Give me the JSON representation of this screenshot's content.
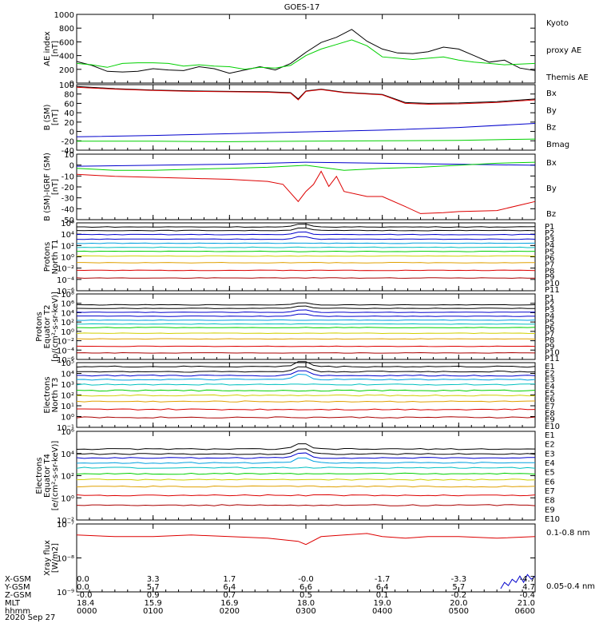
{
  "title": "GOES-17",
  "date": "2020 Sep 27",
  "x_ticks": [
    "0000",
    "0100",
    "0200",
    "0300",
    "0400",
    "0500",
    "0600"
  ],
  "ephemeris": {
    "rows": [
      {
        "label": "X-GSM",
        "values": [
          "0.0",
          "3.3",
          "1.7",
          "-0.0",
          "-1.7",
          "-3.3",
          "-4.7"
        ]
      },
      {
        "label": "Y-GSM",
        "values": [
          "0.0",
          "5.7",
          "6.4",
          "6.6",
          "6.4",
          "5.7",
          "4.7"
        ]
      },
      {
        "label": "Z-GSM",
        "values": [
          "-0.0",
          "0.9",
          "0.7",
          "0.5",
          "0.1",
          "-0.2",
          "-0.4"
        ]
      },
      {
        "label": "MLT",
        "values": [
          "18.4",
          "15.9",
          "16.9",
          "18.0",
          "19.0",
          "20.0",
          "21.0"
        ]
      },
      {
        "label": "hhmm",
        "values": [
          "0000",
          "0100",
          "0200",
          "0300",
          "0400",
          "0500",
          "0600"
        ]
      }
    ]
  },
  "colors": {
    "black": "#000000",
    "green": "#00d000",
    "blue": "#0000cc",
    "red": "#dd0000"
  },
  "chart_data": [
    {
      "type": "line",
      "panel": "ae",
      "ylabel": [
        "AE index",
        "[nT]"
      ],
      "yticks": [
        "0",
        "200",
        "400",
        "600",
        "800",
        "1000"
      ],
      "ylim": [
        0,
        1050
      ],
      "legend": [
        {
          "text": "Kyoto",
          "color": "#00d000"
        },
        {
          "text": "proxy AE",
          "color": "#00d000"
        },
        {
          "text": "Themis AE",
          "color": "#000000"
        }
      ],
      "series": [
        {
          "name": "Themis AE",
          "color": "#000000",
          "x": [
            0,
            0.2,
            0.4,
            0.6,
            0.8,
            1.0,
            1.2,
            1.4,
            1.6,
            1.8,
            2.0,
            2.2,
            2.4,
            2.6,
            2.8,
            3.0,
            3.2,
            3.4,
            3.6,
            3.8,
            4.0,
            4.2,
            4.4,
            4.6,
            4.8,
            5.0,
            5.2,
            5.4,
            5.6,
            5.8,
            6.0
          ],
          "y": [
            330,
            270,
            180,
            170,
            180,
            220,
            200,
            190,
            250,
            220,
            150,
            200,
            250,
            200,
            300,
            470,
            620,
            700,
            820,
            640,
            520,
            460,
            450,
            480,
            550,
            520,
            420,
            320,
            350,
            230,
            190
          ]
        },
        {
          "name": "Kyoto proxy AE",
          "color": "#00d000",
          "x": [
            0,
            0.2,
            0.4,
            0.6,
            0.8,
            1.0,
            1.2,
            1.4,
            1.6,
            1.8,
            2.0,
            2.2,
            2.4,
            2.6,
            2.8,
            3.0,
            3.2,
            3.4,
            3.6,
            3.8,
            4.0,
            4.2,
            4.4,
            4.6,
            4.8,
            5.0,
            5.2,
            5.4,
            5.6,
            5.8,
            6.0
          ],
          "y": [
            300,
            280,
            240,
            300,
            310,
            310,
            300,
            260,
            280,
            260,
            250,
            210,
            240,
            230,
            270,
            420,
            520,
            590,
            660,
            570,
            400,
            380,
            360,
            380,
            400,
            350,
            320,
            300,
            280,
            290,
            300
          ]
        }
      ]
    },
    {
      "type": "line",
      "panel": "b",
      "ylabel": [
        "B (SM)",
        "[nT]"
      ],
      "yticks": [
        "-40",
        "-20",
        "0",
        "20",
        "40",
        "60",
        "80",
        "100"
      ],
      "ylim": [
        -45,
        102
      ],
      "legend": [
        {
          "text": "Bx",
          "color": "#0000cc"
        },
        {
          "text": "By",
          "color": "#00d000"
        },
        {
          "text": "Bz",
          "color": "#dd0000"
        },
        {
          "text": "Bmag",
          "color": "#000000"
        }
      ],
      "series": [
        {
          "name": "Bmag",
          "color": "#000000",
          "x": [
            0,
            0.5,
            1,
            1.5,
            2,
            2.5,
            2.8,
            2.9,
            3.0,
            3.2,
            3.5,
            4.0,
            4.3,
            4.6,
            5.0,
            5.5,
            6.0
          ],
          "y": [
            98,
            93,
            90,
            88,
            87,
            86,
            84,
            70,
            88,
            92,
            85,
            80,
            62,
            60,
            61,
            64,
            70
          ]
        },
        {
          "name": "Bz",
          "color": "#dd0000",
          "x": [
            0,
            0.5,
            1,
            1.5,
            2,
            2.5,
            2.8,
            2.9,
            3.0,
            3.2,
            3.5,
            4.0,
            4.3,
            4.6,
            5.0,
            5.5,
            6.0
          ],
          "y": [
            96,
            92,
            89,
            87,
            86,
            85,
            83,
            68,
            87,
            91,
            84,
            79,
            60,
            58,
            59,
            62,
            68
          ]
        },
        {
          "name": "Bx",
          "color": "#0000cc",
          "x": [
            0,
            1,
            2,
            3,
            4,
            5,
            6
          ],
          "y": [
            -15,
            -12,
            -8,
            -4,
            0,
            6,
            15
          ]
        },
        {
          "name": "By",
          "color": "#00d000",
          "x": [
            0,
            1,
            2,
            3,
            4,
            5,
            6
          ],
          "y": [
            -25,
            -25,
            -26,
            -25,
            -24,
            -23,
            -20
          ]
        }
      ]
    },
    {
      "type": "line",
      "panel": "db",
      "ylabel": [
        "B (SM)-IGRF (SM)",
        "[nT]"
      ],
      "yticks": [
        "-50",
        "-40",
        "-30",
        "-20",
        "-10",
        "0",
        "10"
      ],
      "ylim": [
        -53,
        12
      ],
      "legend": [
        {
          "text": "Bx",
          "color": "#0000cc"
        },
        {
          "text": "By",
          "color": "#00d000"
        },
        {
          "text": "Bz",
          "color": "#dd0000"
        }
      ],
      "series": [
        {
          "name": "Bz",
          "color": "#dd0000",
          "x": [
            0,
            0.5,
            1,
            1.5,
            2,
            2.5,
            2.7,
            2.9,
            3.0,
            3.1,
            3.2,
            3.3,
            3.4,
            3.5,
            3.8,
            4.0,
            4.3,
            4.5,
            4.8,
            5.0,
            5.5,
            6.0
          ],
          "y": [
            -8,
            -10,
            -11,
            -12,
            -13,
            -15,
            -18,
            -35,
            -25,
            -18,
            -5,
            -20,
            -10,
            -25,
            -30,
            -30,
            -40,
            -47,
            -46,
            -45,
            -44,
            -35
          ]
        },
        {
          "name": "Bx",
          "color": "#0000cc",
          "x": [
            0,
            1,
            2,
            3,
            4,
            5,
            6
          ],
          "y": [
            0,
            1,
            2,
            4,
            3,
            2,
            1
          ]
        },
        {
          "name": "By",
          "color": "#00d000",
          "x": [
            0,
            0.5,
            1,
            1.5,
            2,
            2.5,
            3,
            3.5,
            4,
            4.5,
            5,
            5.5,
            6
          ],
          "y": [
            -2,
            -4,
            -4,
            -3,
            -2,
            -1,
            1,
            -4,
            -2,
            -1,
            1,
            3,
            4
          ]
        }
      ]
    },
    {
      "type": "line",
      "panel": "p1",
      "ylabel": [
        "Protons",
        "North T1"
      ],
      "yticks": [
        "10⁻⁶",
        "10⁻⁴",
        "10⁻²",
        "10⁰",
        "10²",
        "10⁴",
        "10⁶"
      ],
      "legend_labels": [
        "P1",
        "P2",
        "P3",
        "P4",
        "P5",
        "P6",
        "P7",
        "P8",
        "P9",
        "P10",
        "P11"
      ],
      "legend_colors": [
        "#000000",
        "#000000",
        "#0000cc",
        "#0000cc",
        "#00a0e0",
        "#00c0c0",
        "#00d000",
        "#d0d000",
        "#e0a000",
        "#dd0000",
        "#aa0000"
      ],
      "levels": [
        6.0,
        5.3,
        4.5,
        3.6,
        2.8,
        2.0,
        1.2,
        0.3,
        -1.0,
        -2.5,
        -4.0
      ]
    },
    {
      "type": "line",
      "panel": "p2",
      "ylabel": [
        "Protons",
        "Equator T2",
        "[p/(cm²-s-sr-keV)]"
      ],
      "yticks": [
        "10⁻⁶",
        "10⁻⁴",
        "10⁻²",
        "10⁰",
        "10²",
        "10⁴",
        "10⁶",
        "10⁸"
      ],
      "legend_labels": [
        "P1",
        "P2",
        "P3",
        "P4",
        "P5",
        "P6",
        "P7",
        "P8",
        "P9",
        "P10",
        "P11"
      ],
      "legend_colors": [
        "#000000",
        "#000000",
        "#0000cc",
        "#0000cc",
        "#00a0e0",
        "#00c0c0",
        "#00d000",
        "#d0d000",
        "#e0a000",
        "#dd0000",
        "#aa0000"
      ],
      "levels": [
        6.0,
        5.2,
        4.3,
        3.4,
        2.5,
        1.6,
        0.8,
        -0.5,
        -1.8,
        -3.5,
        -5.0
      ]
    },
    {
      "type": "line",
      "panel": "e1",
      "ylabel": [
        "Electrons",
        "North T3"
      ],
      "yticks": [
        "10⁻¹",
        "10⁰",
        "10¹",
        "10²",
        "10³",
        "10⁴",
        "10⁵"
      ],
      "legend_labels": [
        "E1",
        "E2",
        "E3",
        "E4",
        "E5",
        "E6",
        "E7",
        "E8",
        "E9",
        "E10"
      ],
      "legend_colors": [
        "#000000",
        "#000000",
        "#0000cc",
        "#00a0e0",
        "#00c0c0",
        "#00d000",
        "#d0d000",
        "#e0a000",
        "#dd0000",
        "#aa0000"
      ],
      "levels": [
        4.8,
        4.3,
        3.9,
        3.5,
        3.0,
        2.4,
        1.9,
        1.3,
        0.5,
        -0.3
      ]
    },
    {
      "type": "line",
      "panel": "e2",
      "ylabel": [
        "Electrons",
        "Equator T4",
        "[e/(cm²-s-sr-keV)]"
      ],
      "yticks": [
        "10⁻²",
        "10⁰",
        "10²",
        "10⁴",
        "10⁶"
      ],
      "legend_labels": [
        "E1",
        "E2",
        "E3",
        "E4",
        "E5",
        "E6",
        "E7",
        "E8",
        "E9",
        "E10"
      ],
      "legend_colors": [
        "#000000",
        "#000000",
        "#0000cc",
        "#00a0e0",
        "#00c0c0",
        "#00d000",
        "#d0d000",
        "#e0a000",
        "#dd0000",
        "#aa0000"
      ],
      "levels": [
        4.7,
        4.2,
        3.8,
        3.3,
        2.8,
        2.2,
        1.6,
        0.9,
        0.0,
        -1.0
      ]
    },
    {
      "type": "line",
      "panel": "xray",
      "ylabel": [
        "Xray flux",
        "[W/m2]"
      ],
      "yticks": [
        "10⁻⁹",
        "10⁻⁸",
        "10⁻⁷"
      ],
      "legend": [
        {
          "text": "0.1-0.8 nm",
          "color": "#dd0000"
        },
        {
          "text": "0.05-0.4 nm",
          "color": "#0000cc"
        }
      ],
      "series": [
        {
          "name": "0.1-0.8 nm",
          "color": "#dd0000",
          "x": [
            0,
            0.5,
            1,
            1.5,
            2,
            2.5,
            2.9,
            3.0,
            3.2,
            3.5,
            3.8,
            4.0,
            4.3,
            4.6,
            5.0,
            5.5,
            6.0
          ],
          "y": [
            -7.3,
            -7.35,
            -7.35,
            -7.3,
            -7.35,
            -7.4,
            -7.5,
            -7.6,
            -7.35,
            -7.3,
            -7.25,
            -7.35,
            -7.4,
            -7.35,
            -7.35,
            -7.4,
            -7.35
          ]
        },
        {
          "name": "0.05-0.4 nm",
          "color": "#0000cc",
          "x": [
            5.55,
            5.6,
            5.65,
            5.7,
            5.75,
            5.8,
            5.85,
            5.9,
            5.95,
            6.0
          ],
          "y": [
            -9.0,
            -8.8,
            -8.9,
            -8.7,
            -8.8,
            -8.6,
            -8.8,
            -8.55,
            -8.7,
            -8.6
          ]
        }
      ]
    }
  ]
}
